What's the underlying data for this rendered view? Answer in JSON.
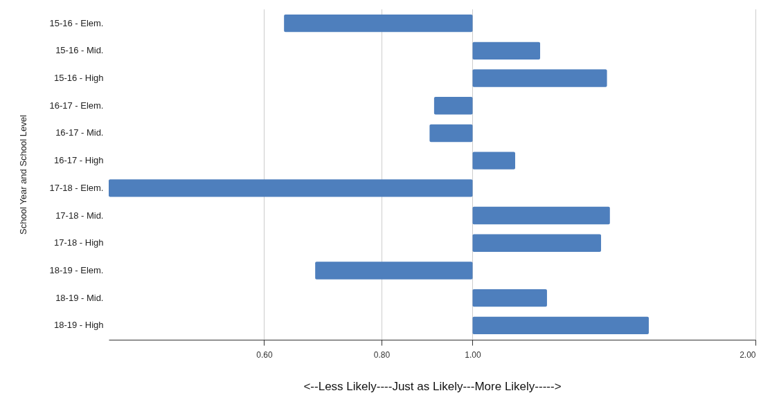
{
  "chart_data": {
    "type": "bar",
    "orientation": "horizontal",
    "ylabel": "School Year  and School Level",
    "xlabel": "<--Less Likely----Just as Likely---More Likely----->",
    "categories": [
      "15-16 - Elem.",
      "15-16 - Mid.",
      "15-16 - High",
      "16-17 - Elem.",
      "16-17 - Mid.",
      "16-17 - High",
      "17-18 - Elem.",
      "17-18 - Mid.",
      "17-18 - High",
      "18-19 - Elem.",
      "18-19 - Mid.",
      "18-19 - High"
    ],
    "base": [
      1,
      1,
      1,
      1,
      1,
      1,
      1,
      1,
      1,
      1,
      1,
      1
    ],
    "values": [
      -0.37,
      0.18,
      0.39,
      -0.09,
      -0.1,
      0.11,
      -0.59,
      0.4,
      0.37,
      -0.32,
      0.2,
      0.54
    ],
    "color": "#4e7fbd",
    "log": "x",
    "xlim": [
      0.41,
      2
    ],
    "xticks": [
      {
        "value": 0.6,
        "label": "0.60"
      },
      {
        "value": 0.8,
        "label": "0.80"
      },
      {
        "value": 1,
        "label": "1.00"
      },
      {
        "value": 2,
        "label": "2.00"
      }
    ],
    "grid": "x"
  }
}
